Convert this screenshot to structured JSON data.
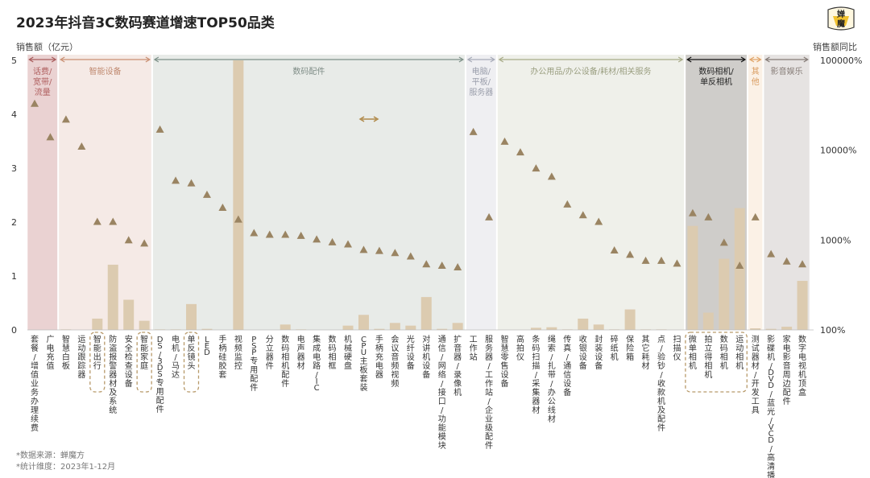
{
  "title": "2023年抖音3C数码赛道增速TOP50品类",
  "logo_text": [
    "婵",
    "魔"
  ],
  "left_axis_title": "销售额（亿元）",
  "right_axis_title": "销售额同比",
  "footnote_source": "*数据来源：蝉魔方",
  "footnote_brand": "蝉魔方",
  "footnote_period": "*统计维度：2023年1-12月",
  "colors": {
    "bar": "#dccbb0",
    "marker": "#9a8462",
    "marker_dark": "#6b5b3e"
  },
  "chart_data": {
    "type": "bar",
    "categories": [
      "套餐/增值业务办理续费",
      "广电充值",
      "智慧白板",
      "运动跟踪器",
      "智能出行",
      "防盗报警器材及系统",
      "安全检查设备",
      "智能家庭",
      "DS/3DS专用配件",
      "电机/马达",
      "单反镜头",
      "LED",
      "手柄硅胶套",
      "视频监控",
      "PSP专用配件",
      "分立器件",
      "数码相机配件",
      "电声器材",
      "集成电路/IC",
      "数码相框",
      "机械硬盘",
      "CPU主板套装",
      "手柄充电器",
      "会议音频视频",
      "光纤设备",
      "对讲机设备",
      "通信/网络/接口/功能模块",
      "扩音器/录像机",
      "工作站",
      "服务器/工作站/企业级配件",
      "智慧零售设备",
      "高拍仪",
      "条码扫描/采集器材",
      "绳索/扎带/办公线材",
      "传真/通信设备",
      "收银设备",
      "封装设备",
      "碎纸机",
      "保险箱",
      "其它耗材",
      "点/验钞/收款机及配件",
      "扫描仪",
      "微单相机",
      "拍立得相机",
      "数码相机",
      "运动相机",
      "测试器材/开发工具",
      "影碟机/DVD/蓝光/VCD/高清播放器",
      "家电影音周边配件",
      "数字电视机顶盒"
    ],
    "series": [
      {
        "name": "销售额",
        "axis": "left",
        "unit": "亿元",
        "values": [
          0,
          0,
          0.01,
          0,
          0.21,
          1.21,
          0.56,
          0.17,
          0.01,
          0.01,
          0.48,
          0.02,
          0,
          5.0,
          0,
          0,
          0.1,
          0.01,
          0,
          0,
          0.08,
          0.28,
          0.02,
          0.13,
          0.08,
          0.61,
          0.02,
          0.13,
          0,
          0,
          0,
          0,
          0.04,
          0.05,
          0.01,
          0.21,
          0.1,
          0.01,
          0.38,
          0.01,
          0.01,
          0,
          1.93,
          0.32,
          1.32,
          2.26,
          0.03,
          0.02,
          0.06,
          0.91
        ]
      },
      {
        "name": "销售额同比",
        "axis": "right",
        "unit": "%",
        "values": [
          33000,
          14000,
          22000,
          11000,
          1600,
          1600,
          1000,
          920,
          17000,
          4600,
          4300,
          3200,
          2300,
          1700,
          1200,
          1150,
          1150,
          1120,
          1020,
          950,
          900,
          780,
          760,
          720,
          660,
          540,
          520,
          500,
          16000,
          1800,
          12500,
          9500,
          6300,
          5100,
          2500,
          1900,
          1600,
          770,
          690,
          590,
          590,
          550,
          2000,
          1800,
          940,
          520,
          1800,
          700,
          580,
          540
        ]
      }
    ],
    "ylim_left": [
      0,
      5
    ],
    "yticks_left": [
      0,
      1,
      2,
      3,
      4,
      5
    ],
    "ylim_right": [
      100,
      100000
    ],
    "yscale_right": "log",
    "yticks_right": [
      "100%",
      "1000%",
      "10000%",
      "100000%"
    ],
    "groups": [
      {
        "name": "话费/宽带/流量",
        "start": 0,
        "end": 1
      },
      {
        "name": "智能设备",
        "start": 2,
        "end": 7
      },
      {
        "name": "数码配件",
        "start": 8,
        "end": 27
      },
      {
        "name": "电脑/平板/服务器",
        "start": 28,
        "end": 29
      },
      {
        "name": "办公用品/办公设备/耗材/相关服务",
        "start": 30,
        "end": 41
      },
      {
        "name": "数码相机/单反相机",
        "start": 42,
        "end": 45
      },
      {
        "name": "其他",
        "start": 46,
        "end": 46
      },
      {
        "name": "影音娱乐",
        "start": 47,
        "end": 49
      }
    ],
    "highlighted_categories": [
      "智能出行",
      "智能家庭",
      "单反镜头",
      "微单相机",
      "拍立得相机",
      "数码相机",
      "运动相机"
    ]
  }
}
